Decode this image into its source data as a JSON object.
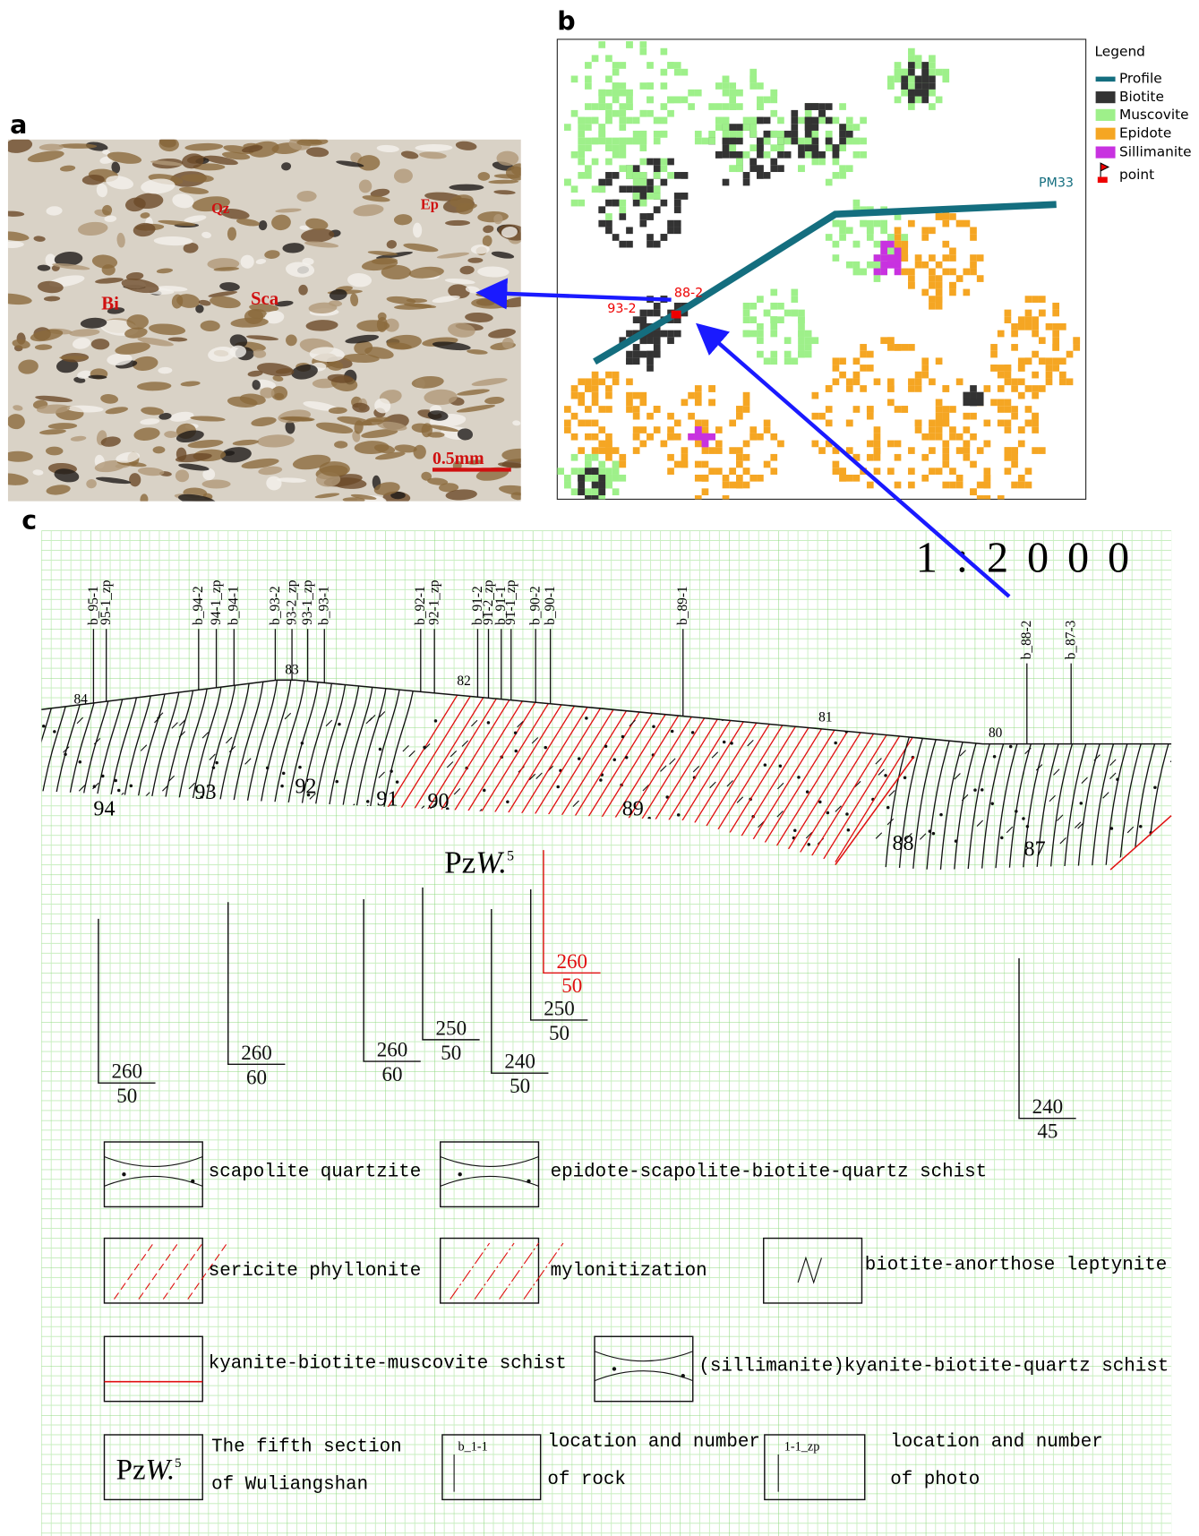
{
  "panel_a": {
    "label": "a",
    "minerals": [
      "Qz",
      "Ep",
      "Bi",
      "Sca"
    ],
    "scale_bar": "0.5mm"
  },
  "panel_b": {
    "label": "b",
    "legend_title": "Legend",
    "legend": [
      "Profile",
      "Biotite",
      "Muscovite",
      "Epidote",
      "Sillimanite",
      "point"
    ],
    "profile": "PM33",
    "points": [
      "88-2",
      "93-2"
    ]
  },
  "panel_c": {
    "label": "c",
    "scale": "1 : 2 0 0 0",
    "samples": [
      "b_95-1",
      "95-1_zp",
      "b_94-2",
      "94-1_zp",
      "b_94-1",
      "b_93-2",
      "93-2_zp",
      "93-1_zp",
      "b_93-1",
      "b_92-1",
      "92-1_zp",
      "b_91-2",
      "91-2_zp",
      "b_91-1",
      "91-1_zp",
      "b_90-2",
      "b_90-1",
      "b_89-1",
      "b_88-2",
      "b_87-3"
    ],
    "stations": [
      "84",
      "83",
      "82",
      "81",
      "80"
    ],
    "layers": [
      "94",
      "93",
      "92",
      "91",
      "90",
      "89",
      "88",
      "87"
    ],
    "formation": {
      "base": "Pz",
      "italic": "W.",
      "sup": "5"
    },
    "attitudes": [
      {
        "strike": 260,
        "dip": 50
      },
      {
        "strike": 260,
        "dip": 60
      },
      {
        "strike": 260,
        "dip": 60
      },
      {
        "strike": 250,
        "dip": 50
      },
      {
        "strike": 240,
        "dip": 50
      },
      {
        "strike": 250,
        "dip": 50
      },
      {
        "strike": 260,
        "dip": 50
      },
      {
        "strike": 240,
        "dip": 45
      }
    ],
    "legend": [
      "scapolite quartzite",
      "epidote-scapolite-biotite-quartz schist",
      "sericite phyllonite",
      "mylonitization",
      "biotite-anorthose leptynite",
      "kyanite-biotite-muscovite schist",
      "(sillimanite)kyanite-biotite-quartz schist"
    ],
    "key": {
      "formation_text": [
        "The fifth section",
        "of Wuliangshan"
      ],
      "rock_sample": "b_1-1",
      "rock_text": [
        "location and number",
        "of rock"
      ],
      "photo_sample": "1-1_zp",
      "photo_text": [
        "location and number",
        "of photo"
      ]
    }
  }
}
